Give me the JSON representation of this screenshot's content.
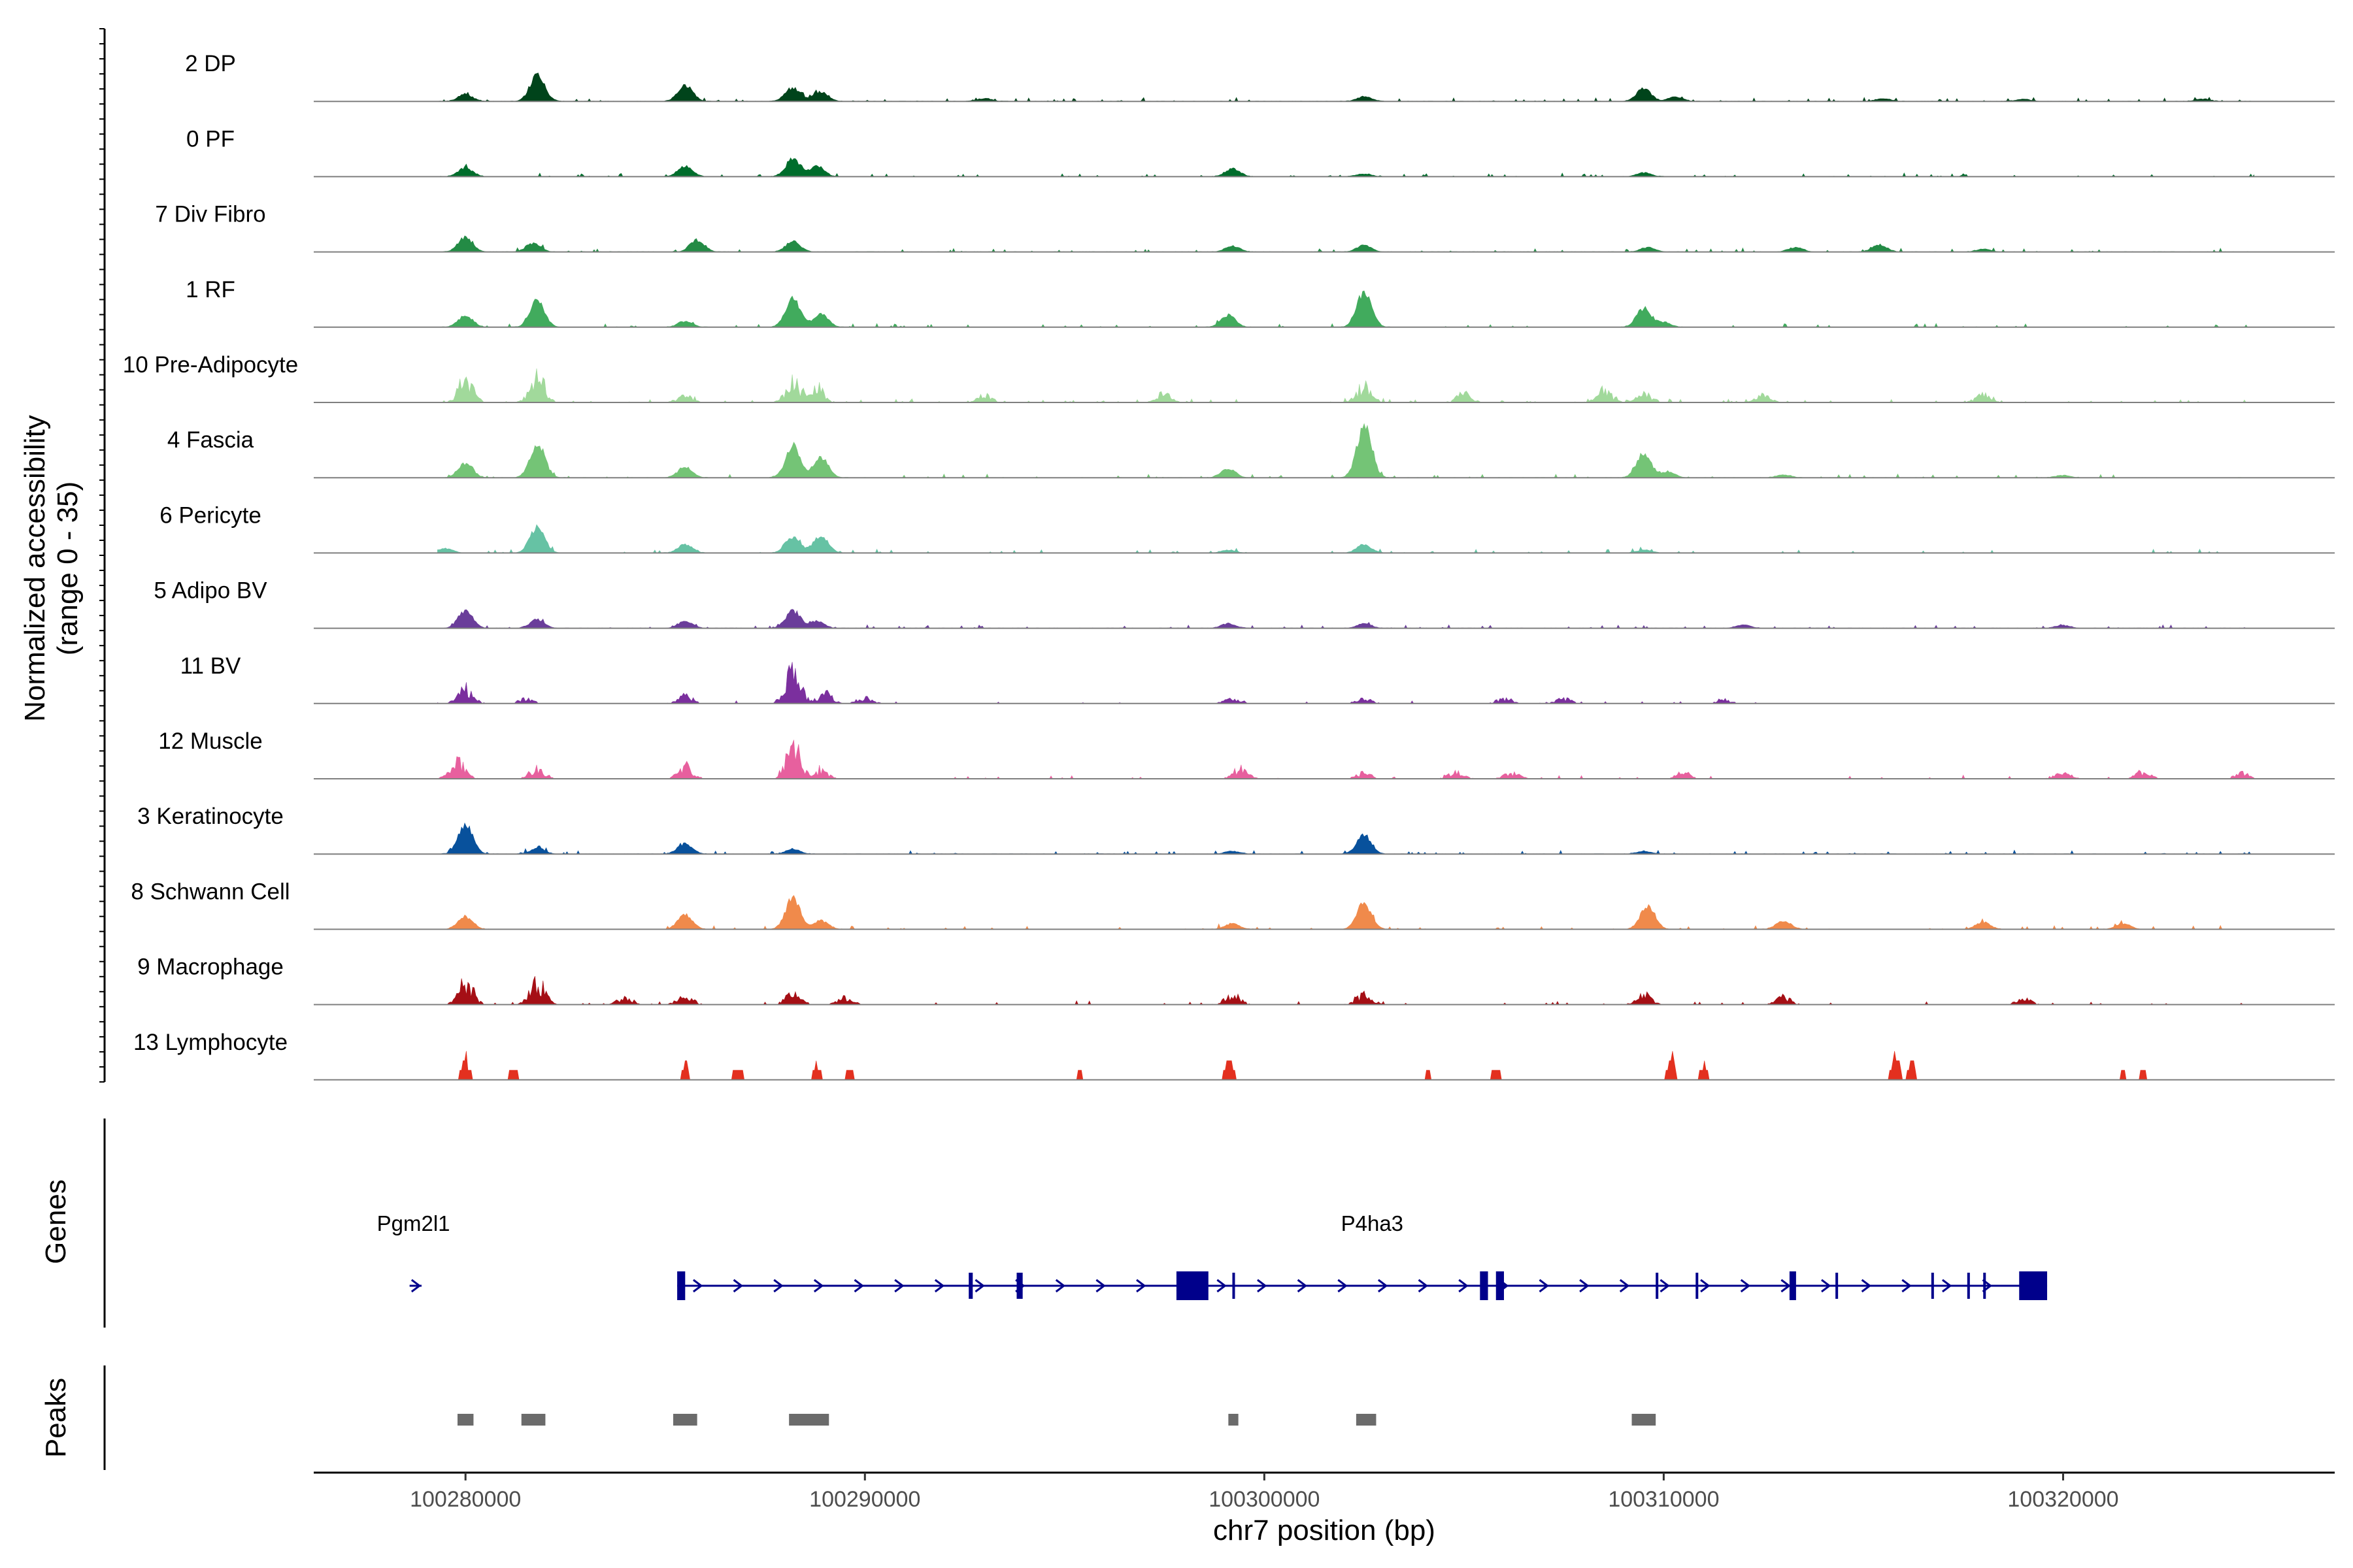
{
  "chart_data": {
    "type": "coverage",
    "title": "",
    "ylabel": "Normalized accessibility",
    "ylabel_range": "(range 0 - 35)",
    "ylim": [
      0,
      35
    ],
    "xlabel": "chr7 position (bp)",
    "xlim": [
      100276200,
      100326800
    ],
    "xticks": [
      100280000,
      100290000,
      100300000,
      100310000,
      100320000
    ],
    "xtick_labels": [
      "100280000",
      "100290000",
      "100300000",
      "100310000",
      "100320000"
    ],
    "tracks": [
      {
        "name": "2 DP",
        "color": "#00441b",
        "density": 0.3,
        "style": "smooth",
        "peaks": [
          [
            100280000,
            0.12
          ],
          [
            100281800,
            0.46
          ],
          [
            100285500,
            0.28
          ],
          [
            100288200,
            0.24
          ],
          [
            100288900,
            0.16
          ],
          [
            100293000,
            0.05
          ],
          [
            100302500,
            0.08
          ],
          [
            100309500,
            0.22
          ],
          [
            100310300,
            0.08
          ],
          [
            100315500,
            0.05
          ],
          [
            100319000,
            0.04
          ],
          [
            100323500,
            0.04
          ]
        ]
      },
      {
        "name": "0 PF",
        "color": "#006d2c",
        "density": 0.3,
        "style": "smooth",
        "peaks": [
          [
            100280000,
            0.15
          ],
          [
            100285500,
            0.18
          ],
          [
            100288200,
            0.3
          ],
          [
            100288800,
            0.18
          ],
          [
            100299200,
            0.14
          ],
          [
            100302500,
            0.05
          ],
          [
            100309500,
            0.07
          ]
        ]
      },
      {
        "name": "7 Div Fibro",
        "color": "#238b45",
        "density": 0.22,
        "style": "smooth",
        "peaks": [
          [
            100280000,
            0.25
          ],
          [
            100281700,
            0.15
          ],
          [
            100285800,
            0.2
          ],
          [
            100288200,
            0.18
          ],
          [
            100299200,
            0.1
          ],
          [
            100302500,
            0.12
          ],
          [
            100309600,
            0.08
          ],
          [
            100313300,
            0.08
          ],
          [
            100315400,
            0.12
          ],
          [
            100318000,
            0.05
          ]
        ]
      },
      {
        "name": "1 RF",
        "color": "#41ab5d",
        "density": 0.25,
        "style": "smooth",
        "peaks": [
          [
            100280000,
            0.2
          ],
          [
            100281800,
            0.45
          ],
          [
            100285500,
            0.1
          ],
          [
            100288200,
            0.48
          ],
          [
            100288900,
            0.22
          ],
          [
            100299100,
            0.2
          ],
          [
            100302500,
            0.62
          ],
          [
            100309500,
            0.32
          ],
          [
            100310000,
            0.08
          ]
        ]
      },
      {
        "name": "10 Pre-Adipocyte",
        "color": "#a1d99b",
        "density": 0.45,
        "style": "spiky",
        "peaks": [
          [
            100280000,
            0.45
          ],
          [
            100281800,
            0.5
          ],
          [
            100285500,
            0.15
          ],
          [
            100288200,
            0.4
          ],
          [
            100288800,
            0.3
          ],
          [
            100293000,
            0.15
          ],
          [
            100297500,
            0.18
          ],
          [
            100302500,
            0.35
          ],
          [
            100305000,
            0.18
          ],
          [
            100308500,
            0.25
          ],
          [
            100309500,
            0.2
          ],
          [
            100312500,
            0.15
          ],
          [
            100318000,
            0.15
          ]
        ]
      },
      {
        "name": "4 Fascia",
        "color": "#74c476",
        "density": 0.25,
        "style": "smooth",
        "peaks": [
          [
            100280000,
            0.25
          ],
          [
            100281800,
            0.6
          ],
          [
            100285500,
            0.18
          ],
          [
            100288200,
            0.55
          ],
          [
            100288900,
            0.35
          ],
          [
            100299100,
            0.15
          ],
          [
            100302500,
            0.9
          ],
          [
            100309500,
            0.42
          ],
          [
            100310100,
            0.1
          ],
          [
            100313000,
            0.05
          ],
          [
            100320000,
            0.04
          ]
        ]
      },
      {
        "name": "6 Pericyte",
        "color": "#66c2a4",
        "density": 0.3,
        "style": "smooth",
        "peaks": [
          [
            100279500,
            0.08
          ],
          [
            100281800,
            0.45
          ],
          [
            100285500,
            0.14
          ],
          [
            100288200,
            0.28
          ],
          [
            100288900,
            0.3
          ],
          [
            100302500,
            0.14
          ],
          [
            100299100,
            0.05
          ],
          [
            100309500,
            0.05
          ]
        ]
      },
      {
        "name": "5 Adipo BV",
        "color": "#6a3d9a",
        "density": 0.25,
        "style": "smooth",
        "peaks": [
          [
            100280000,
            0.3
          ],
          [
            100281800,
            0.15
          ],
          [
            100285500,
            0.12
          ],
          [
            100288200,
            0.3
          ],
          [
            100288800,
            0.12
          ],
          [
            100299100,
            0.08
          ],
          [
            100302500,
            0.08
          ],
          [
            100312000,
            0.06
          ],
          [
            100320000,
            0.05
          ]
        ]
      },
      {
        "name": "11 BV",
        "color": "#7b2f9e",
        "density": 0.15,
        "style": "spiky",
        "xmax": 100313000,
        "peaks": [
          [
            100280000,
            0.3
          ],
          [
            100281500,
            0.1
          ],
          [
            100285500,
            0.15
          ],
          [
            100288200,
            0.65
          ],
          [
            100289000,
            0.2
          ],
          [
            100290000,
            0.12
          ],
          [
            100299200,
            0.12
          ],
          [
            100302500,
            0.1
          ],
          [
            100306000,
            0.1
          ],
          [
            100307500,
            0.1
          ],
          [
            100311500,
            0.08
          ]
        ]
      },
      {
        "name": "12 Muscle",
        "color": "#e7609e",
        "density": 0.18,
        "style": "spiky",
        "peaks": [
          [
            100279800,
            0.35
          ],
          [
            100281800,
            0.2
          ],
          [
            100285500,
            0.25
          ],
          [
            100288200,
            0.65
          ],
          [
            100288900,
            0.15
          ],
          [
            100299400,
            0.2
          ],
          [
            100302500,
            0.12
          ],
          [
            100304800,
            0.15
          ],
          [
            100306200,
            0.12
          ],
          [
            100310500,
            0.12
          ],
          [
            100320000,
            0.12
          ],
          [
            100322000,
            0.12
          ],
          [
            100324500,
            0.12
          ]
        ]
      },
      {
        "name": "3 Keratinocyte",
        "color": "#08519c",
        "density": 0.3,
        "style": "smooth",
        "peaks": [
          [
            100280000,
            0.5
          ],
          [
            100281800,
            0.1
          ],
          [
            100285500,
            0.18
          ],
          [
            100288200,
            0.08
          ],
          [
            100302500,
            0.32
          ],
          [
            100299200,
            0.05
          ],
          [
            100309500,
            0.05
          ]
        ]
      },
      {
        "name": "8 Schwann Cell",
        "color": "#f08a4b",
        "density": 0.22,
        "style": "smooth",
        "peaks": [
          [
            100280000,
            0.22
          ],
          [
            100285500,
            0.25
          ],
          [
            100288200,
            0.55
          ],
          [
            100288900,
            0.15
          ],
          [
            100299200,
            0.1
          ],
          [
            100302500,
            0.45
          ],
          [
            100309600,
            0.4
          ],
          [
            100313000,
            0.15
          ],
          [
            100318000,
            0.12
          ],
          [
            100321500,
            0.1
          ]
        ]
      },
      {
        "name": "9 Macrophage",
        "color": "#a50f15",
        "density": 0.18,
        "style": "spiky",
        "peaks": [
          [
            100280000,
            0.45
          ],
          [
            100281800,
            0.45
          ],
          [
            100284000,
            0.15
          ],
          [
            100285500,
            0.18
          ],
          [
            100288200,
            0.22
          ],
          [
            100289500,
            0.15
          ],
          [
            100299200,
            0.2
          ],
          [
            100302500,
            0.2
          ],
          [
            100309500,
            0.2
          ],
          [
            100313000,
            0.15
          ],
          [
            100319000,
            0.12
          ]
        ]
      },
      {
        "name": "13 Lymphocyte",
        "color": "#e3301f",
        "density": 0.1,
        "style": "blocky",
        "peaks": [
          [
            100280000,
            0.4
          ],
          [
            100281200,
            0.28
          ],
          [
            100285500,
            0.25
          ],
          [
            100286800,
            0.2
          ],
          [
            100288800,
            0.28
          ],
          [
            100289600,
            0.18
          ],
          [
            100295400,
            0.15
          ],
          [
            100299100,
            0.45
          ],
          [
            100304100,
            0.15
          ],
          [
            100305800,
            0.15
          ],
          [
            100310200,
            0.45
          ],
          [
            100311000,
            0.3
          ],
          [
            100315800,
            0.5
          ],
          [
            100316200,
            0.3
          ],
          [
            100321500,
            0.15
          ],
          [
            100322000,
            0.15
          ]
        ]
      }
    ],
    "genes": {
      "title": "Genes",
      "color": "#00008b",
      "items": [
        {
          "name": "Pgm2l1",
          "start": 100278600,
          "end": 100278900,
          "strand": "+",
          "exons": [],
          "label_pos": 100278600
        },
        {
          "name": "P4ha3",
          "start": 100285300,
          "end": 100319600,
          "strand": "+",
          "label_pos": 100302700,
          "thick_exons": [
            [
              100285300,
              100285500
            ],
            [
              100297800,
              100298600
            ],
            [
              100305400,
              100305600
            ],
            [
              100305800,
              100306000
            ],
            [
              100313150,
              100313300
            ],
            [
              100318900,
              100319600
            ]
          ],
          "thin_exons": [
            [
              100292600,
              100292700
            ],
            [
              100293800,
              100293950
            ],
            [
              100299200,
              100299250
            ],
            [
              100309800,
              100309850
            ],
            [
              100310800,
              100310850
            ],
            [
              100314300,
              100314350
            ],
            [
              100316700,
              100316750
            ],
            [
              100317600,
              100317650
            ],
            [
              100318000,
              100318050
            ]
          ]
        }
      ]
    },
    "peaks_track": {
      "title": "Peaks",
      "color": "#6b6b6b",
      "regions": [
        [
          100279800,
          100280200
        ],
        [
          100281400,
          100282000
        ],
        [
          100285200,
          100285800
        ],
        [
          100288100,
          100289100
        ],
        [
          100299100,
          100299350
        ],
        [
          100302300,
          100302800
        ],
        [
          100309200,
          100309800
        ]
      ]
    }
  }
}
